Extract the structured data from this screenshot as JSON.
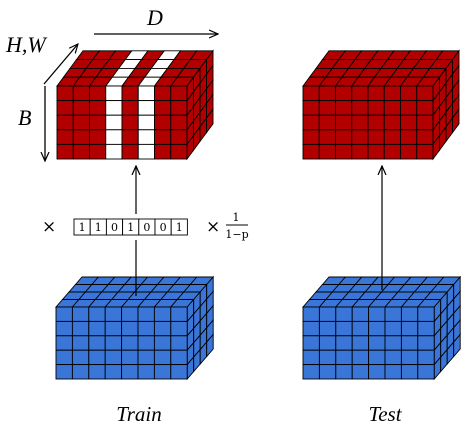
{
  "labels": {
    "dim_d": "D",
    "dim_hw": "H,W",
    "dim_b": "B",
    "times": "×",
    "times2": "×",
    "frac_num": "1",
    "frac_den": "1−p",
    "caption_train": "Train",
    "caption_test": "Test"
  },
  "mask": [
    "1",
    "1",
    "0",
    "1",
    "0",
    "0",
    "1"
  ],
  "colors": {
    "red": "#b20000",
    "blue": "#3a76d8",
    "white": "#ffffff",
    "grid": "#000000"
  }
}
